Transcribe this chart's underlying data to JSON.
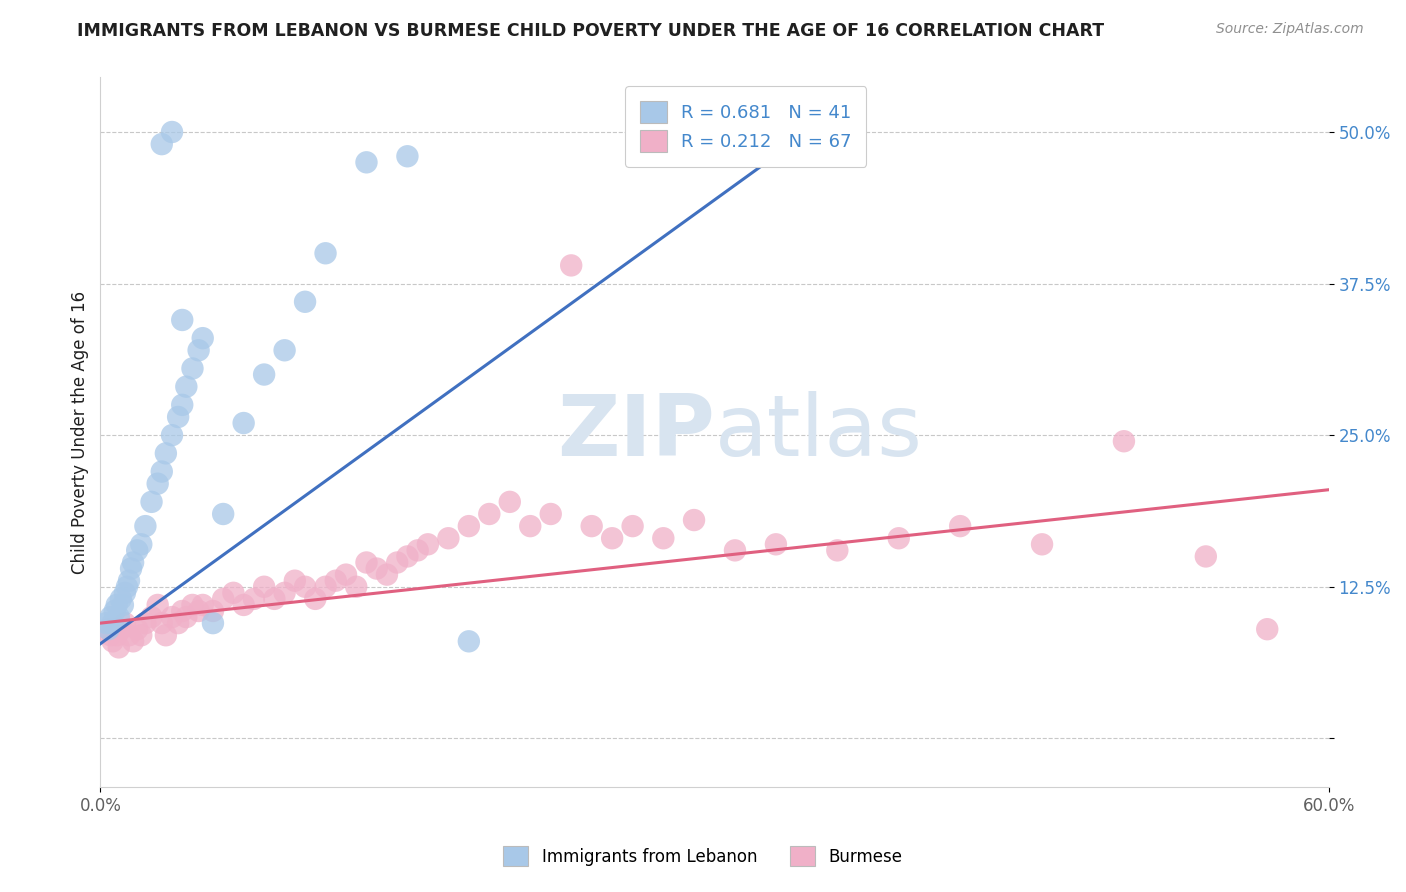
{
  "title": "IMMIGRANTS FROM LEBANON VS BURMESE CHILD POVERTY UNDER THE AGE OF 16 CORRELATION CHART",
  "source": "Source: ZipAtlas.com",
  "ylabel": "Child Poverty Under the Age of 16",
  "xlim": [
    0.0,
    0.6
  ],
  "ylim": [
    -0.04,
    0.545
  ],
  "legend_label1": "Immigrants from Lebanon",
  "legend_label2": "Burmese",
  "r1": 0.681,
  "n1": 41,
  "r2": 0.212,
  "n2": 67,
  "blue_color": "#a8c8e8",
  "pink_color": "#f0b0c8",
  "line_blue": "#4070c0",
  "line_pink": "#e06080",
  "grid_color": "#c8c8c8",
  "background_color": "#ffffff",
  "title_color": "#202020",
  "axis_color": "#606060",
  "tick_color": "#4488cc",
  "watermark_color": "#d8e4f0",
  "blue_x": [
    0.003,
    0.004,
    0.005,
    0.006,
    0.007,
    0.008,
    0.009,
    0.01,
    0.011,
    0.012,
    0.013,
    0.014,
    0.015,
    0.016,
    0.018,
    0.02,
    0.022,
    0.025,
    0.028,
    0.03,
    0.032,
    0.035,
    0.038,
    0.04,
    0.042,
    0.045,
    0.048,
    0.05,
    0.055,
    0.06,
    0.07,
    0.08,
    0.09,
    0.1,
    0.11,
    0.13,
    0.15,
    0.18,
    0.03,
    0.035,
    0.04
  ],
  "blue_y": [
    0.095,
    0.09,
    0.1,
    0.095,
    0.105,
    0.11,
    0.1,
    0.115,
    0.11,
    0.12,
    0.125,
    0.13,
    0.14,
    0.145,
    0.155,
    0.16,
    0.175,
    0.195,
    0.21,
    0.22,
    0.235,
    0.25,
    0.265,
    0.275,
    0.29,
    0.305,
    0.32,
    0.33,
    0.095,
    0.185,
    0.26,
    0.3,
    0.32,
    0.36,
    0.4,
    0.475,
    0.48,
    0.08,
    0.49,
    0.5,
    0.345
  ],
  "pink_x": [
    0.004,
    0.005,
    0.006,
    0.007,
    0.008,
    0.009,
    0.01,
    0.012,
    0.014,
    0.016,
    0.018,
    0.02,
    0.022,
    0.025,
    0.028,
    0.03,
    0.032,
    0.035,
    0.038,
    0.04,
    0.042,
    0.045,
    0.048,
    0.05,
    0.055,
    0.06,
    0.065,
    0.07,
    0.075,
    0.08,
    0.085,
    0.09,
    0.095,
    0.1,
    0.105,
    0.11,
    0.115,
    0.12,
    0.125,
    0.13,
    0.135,
    0.14,
    0.145,
    0.15,
    0.155,
    0.16,
    0.17,
    0.18,
    0.19,
    0.2,
    0.21,
    0.22,
    0.23,
    0.24,
    0.25,
    0.26,
    0.275,
    0.29,
    0.31,
    0.33,
    0.36,
    0.39,
    0.42,
    0.46,
    0.5,
    0.54,
    0.57
  ],
  "pink_y": [
    0.09,
    0.085,
    0.08,
    0.09,
    0.085,
    0.075,
    0.09,
    0.095,
    0.085,
    0.08,
    0.09,
    0.085,
    0.095,
    0.1,
    0.11,
    0.095,
    0.085,
    0.1,
    0.095,
    0.105,
    0.1,
    0.11,
    0.105,
    0.11,
    0.105,
    0.115,
    0.12,
    0.11,
    0.115,
    0.125,
    0.115,
    0.12,
    0.13,
    0.125,
    0.115,
    0.125,
    0.13,
    0.135,
    0.125,
    0.145,
    0.14,
    0.135,
    0.145,
    0.15,
    0.155,
    0.16,
    0.165,
    0.175,
    0.185,
    0.195,
    0.175,
    0.185,
    0.39,
    0.175,
    0.165,
    0.175,
    0.165,
    0.18,
    0.155,
    0.16,
    0.155,
    0.165,
    0.175,
    0.16,
    0.245,
    0.15,
    0.09
  ],
  "blue_line_x": [
    0.0,
    0.35
  ],
  "blue_line_y": [
    0.078,
    0.505
  ],
  "pink_line_x": [
    0.0,
    0.6
  ],
  "pink_line_y": [
    0.095,
    0.205
  ]
}
